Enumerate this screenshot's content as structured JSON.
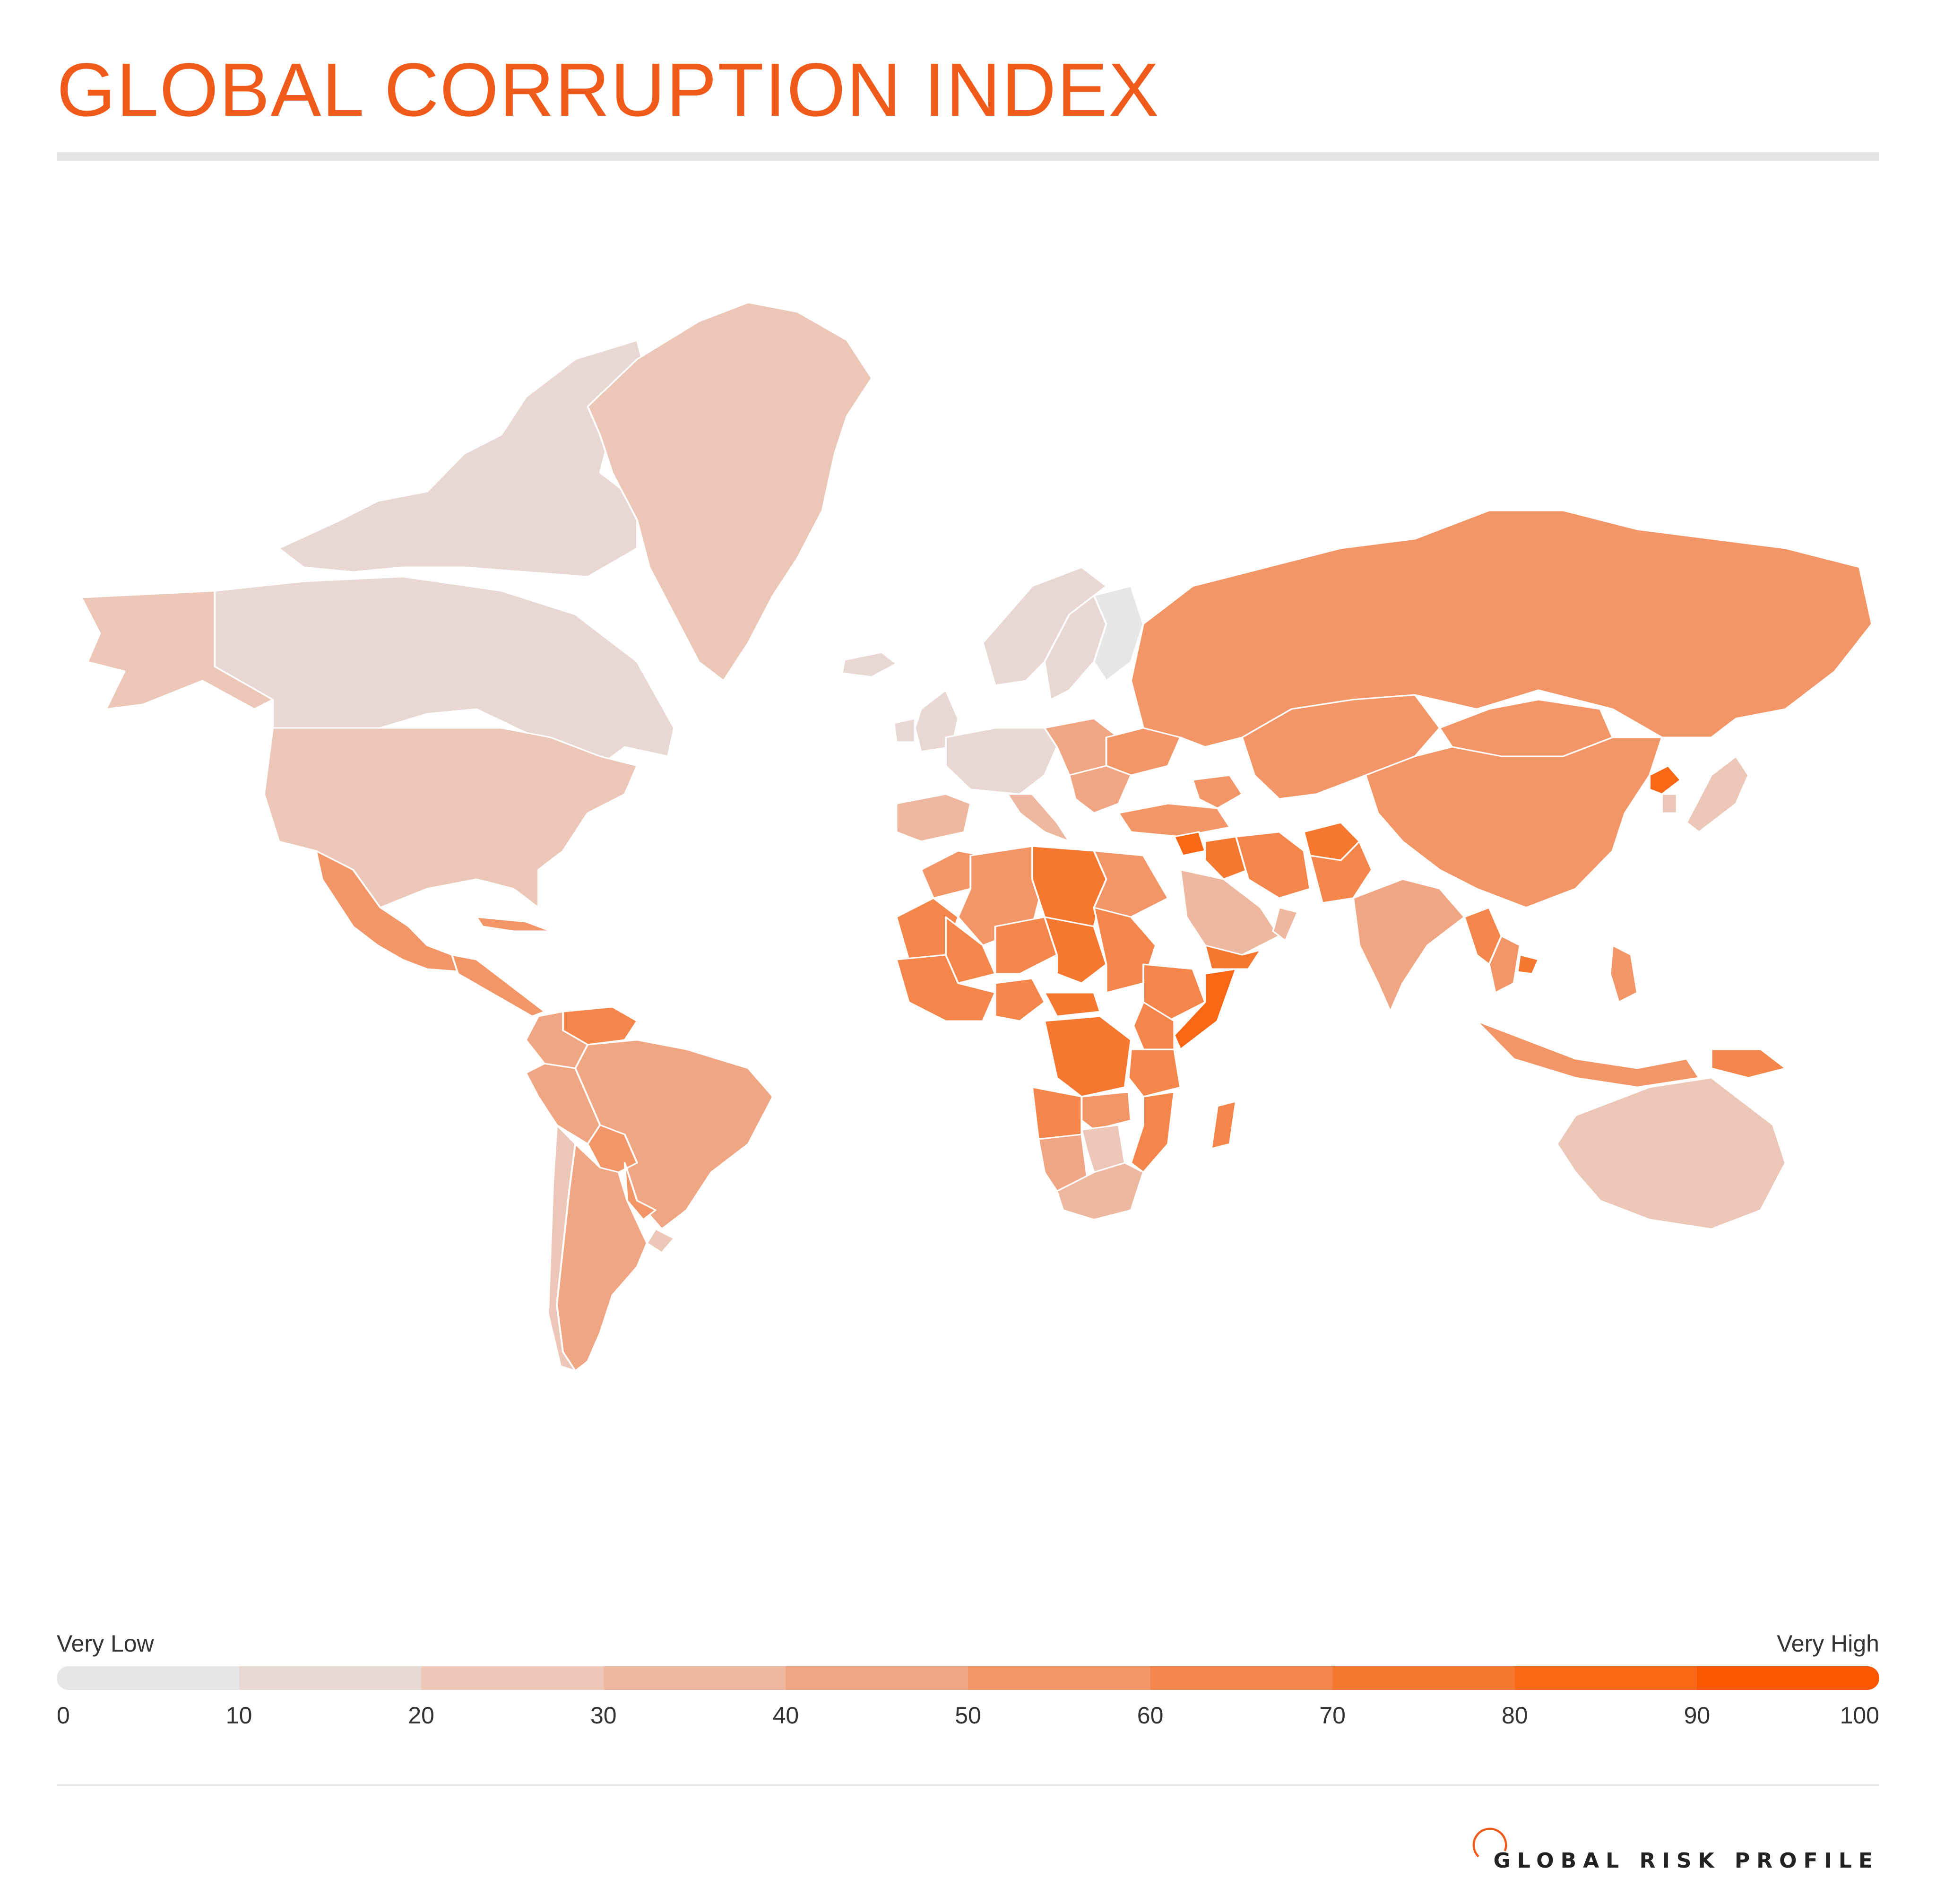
{
  "title": "GLOBAL CORRUPTION INDEX",
  "colors": {
    "title": "#f05a1a",
    "land_unknown": "#ffffff",
    "border": "#ffffff",
    "scale": [
      "#e6e6e6",
      "#e8d7d2",
      "#ecc7b7",
      "#eeb8a0",
      "#f0a683",
      "#f29667",
      "#f4864c",
      "#f67730",
      "#f86616",
      "#fa5500"
    ]
  },
  "legend": {
    "low_label": "Very Low",
    "high_label": "Very High",
    "ticks": [
      "0",
      "10",
      "20",
      "30",
      "40",
      "50",
      "60",
      "70",
      "80",
      "90",
      "100"
    ]
  },
  "brand": {
    "name": "GLOBAL RISK PROFILE",
    "mark_icon": "arc-logo-icon"
  },
  "map_data": {
    "type": "choropleth",
    "value_range": [
      0,
      100
    ],
    "regions": [
      {
        "name": "Alaska",
        "value": 22
      },
      {
        "name": "Canada",
        "value": 12
      },
      {
        "name": "Canadian Arctic Islands",
        "value": 12
      },
      {
        "name": "Greenland",
        "value": 22
      },
      {
        "name": "Iceland",
        "value": 12
      },
      {
        "name": "United States",
        "value": 25
      },
      {
        "name": "Mexico",
        "value": 55
      },
      {
        "name": "Cuba",
        "value": 55
      },
      {
        "name": "Central America",
        "value": 58
      },
      {
        "name": "Venezuela",
        "value": 68
      },
      {
        "name": "Colombia",
        "value": 46
      },
      {
        "name": "Peru",
        "value": 46
      },
      {
        "name": "Brazil",
        "value": 46
      },
      {
        "name": "Bolivia",
        "value": 58
      },
      {
        "name": "Paraguay",
        "value": 58
      },
      {
        "name": "Chile",
        "value": 28
      },
      {
        "name": "Uruguay",
        "value": 20
      },
      {
        "name": "Argentina",
        "value": 46
      },
      {
        "name": "United Kingdom",
        "value": 15
      },
      {
        "name": "Ireland",
        "value": 15
      },
      {
        "name": "Norway",
        "value": 12
      },
      {
        "name": "Sweden",
        "value": 12
      },
      {
        "name": "Finland",
        "value": 5
      },
      {
        "name": "Western Europe",
        "value": 18
      },
      {
        "name": "Iberia",
        "value": 32
      },
      {
        "name": "Italy",
        "value": 35
      },
      {
        "name": "Eastern Europe",
        "value": 40
      },
      {
        "name": "Ukraine",
        "value": 58
      },
      {
        "name": "Balkans",
        "value": 45
      },
      {
        "name": "Russia",
        "value": 55
      },
      {
        "name": "Turkey",
        "value": 50
      },
      {
        "name": "Central Asia",
        "value": 55
      },
      {
        "name": "Caucasus",
        "value": 55
      },
      {
        "name": "China",
        "value": 55
      },
      {
        "name": "Mongolia",
        "value": 55
      },
      {
        "name": "North Korea",
        "value": 85
      },
      {
        "name": "South Korea",
        "value": 25
      },
      {
        "name": "Japan",
        "value": 20
      },
      {
        "name": "Syria",
        "value": 80
      },
      {
        "name": "Iraq",
        "value": 70
      },
      {
        "name": "Iran",
        "value": 62
      },
      {
        "name": "Afghanistan",
        "value": 70
      },
      {
        "name": "Pakistan",
        "value": 62
      },
      {
        "name": "Saudi Arabia",
        "value": 38
      },
      {
        "name": "Oman",
        "value": 35
      },
      {
        "name": "Yemen",
        "value": 78
      },
      {
        "name": "India",
        "value": 40
      },
      {
        "name": "Myanmar",
        "value": 62
      },
      {
        "name": "Thailand",
        "value": 52
      },
      {
        "name": "Cambodia",
        "value": 72
      },
      {
        "name": "Indonesia",
        "value": 55
      },
      {
        "name": "Philippines",
        "value": 55
      },
      {
        "name": "Papua New Guinea",
        "value": 60
      },
      {
        "name": "Australia",
        "value": 22
      },
      {
        "name": "Morocco",
        "value": 55
      },
      {
        "name": "Algeria",
        "value": 58
      },
      {
        "name": "Libya",
        "value": 72
      },
      {
        "name": "Egypt",
        "value": 58
      },
      {
        "name": "Mauritania",
        "value": 60
      },
      {
        "name": "Mali",
        "value": 62
      },
      {
        "name": "Niger",
        "value": 62
      },
      {
        "name": "Chad",
        "value": 72
      },
      {
        "name": "Sudan",
        "value": 68
      },
      {
        "name": "Ethiopia",
        "value": 62
      },
      {
        "name": "Somalia",
        "value": 82
      },
      {
        "name": "West Africa",
        "value": 62
      },
      {
        "name": "Nigeria",
        "value": 65
      },
      {
        "name": "Central African Republic",
        "value": 72
      },
      {
        "name": "DR Congo",
        "value": 74
      },
      {
        "name": "Kenya",
        "value": 62
      },
      {
        "name": "Tanzania",
        "value": 60
      },
      {
        "name": "Angola",
        "value": 65
      },
      {
        "name": "Zambia",
        "value": 55
      },
      {
        "name": "Mozambique",
        "value": 62
      },
      {
        "name": "Namibia",
        "value": 40
      },
      {
        "name": "Botswana",
        "value": 22
      },
      {
        "name": "South Africa",
        "value": 38
      },
      {
        "name": "Madagascar",
        "value": 62
      }
    ]
  }
}
